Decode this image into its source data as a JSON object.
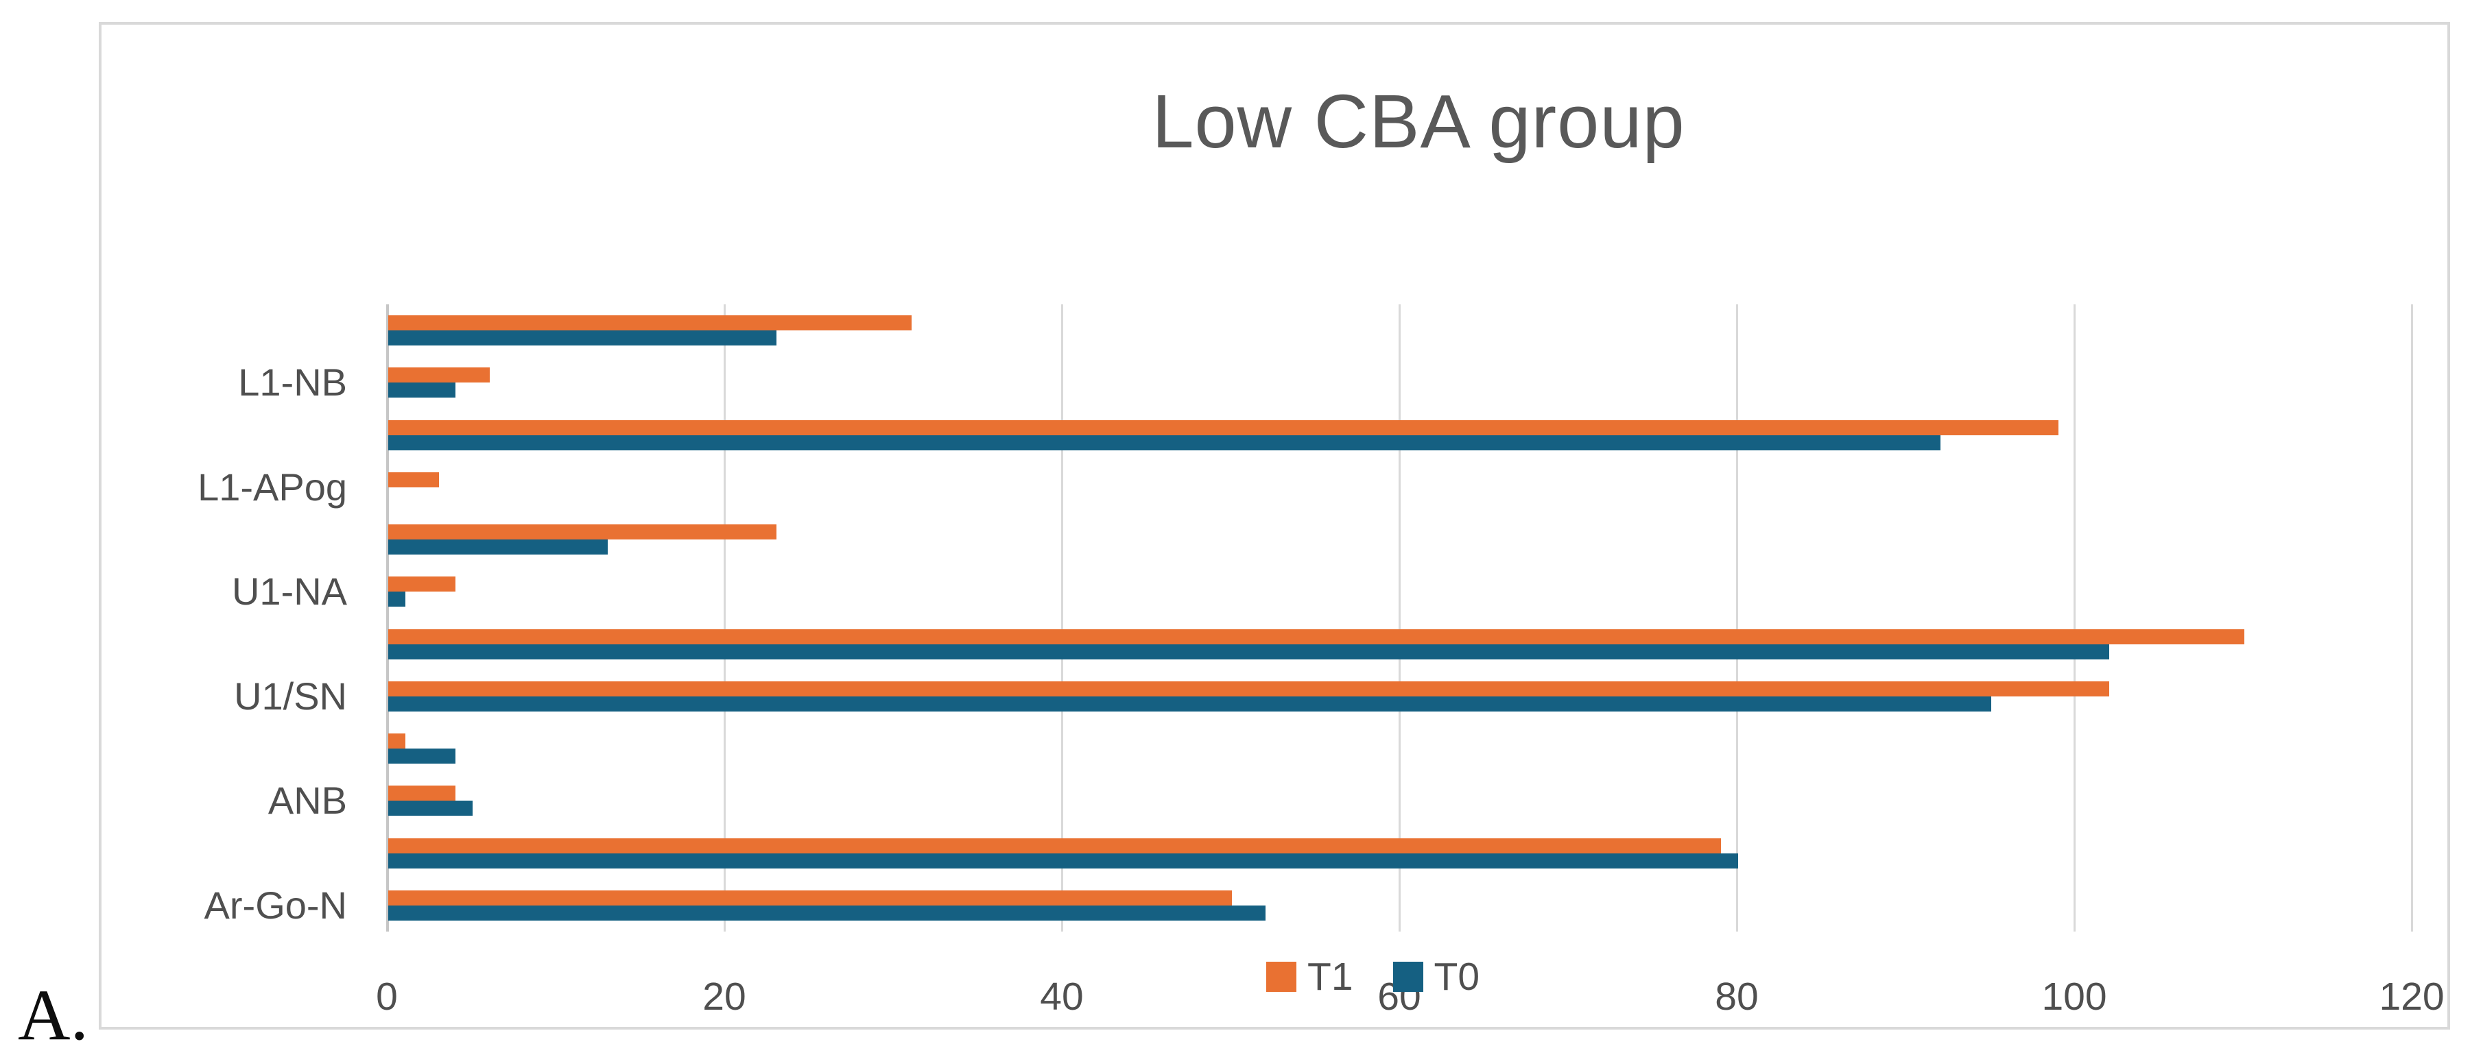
{
  "figure_label": "A.",
  "chart_data": {
    "type": "bar",
    "orientation": "horizontal",
    "title": "Low CBA group",
    "categories_top_to_bottom": [
      "",
      "L1-NB",
      "",
      "L1-APog",
      "",
      "U1-NA",
      "",
      "U1/SN",
      "",
      "ANB",
      "",
      "Ar-Go-N"
    ],
    "series": [
      {
        "name": "T1",
        "color": "#E97132",
        "values_top_to_bottom": [
          31,
          6,
          99,
          3,
          23,
          4,
          110,
          102,
          1,
          4,
          79,
          50
        ]
      },
      {
        "name": "T0",
        "color": "#156082",
        "values_top_to_bottom": [
          23,
          4,
          92,
          0,
          13,
          1,
          102,
          95,
          4,
          5,
          80,
          52
        ]
      }
    ],
    "xlim": [
      0,
      120
    ],
    "xticks": [
      0,
      20,
      40,
      60,
      80,
      100,
      120
    ],
    "xtick_labels": [
      "0",
      "20",
      "40",
      "60",
      "80",
      "100",
      "120"
    ],
    "grid": true,
    "legend_position": "bottom",
    "legend_entries": [
      "T1",
      "T0"
    ],
    "style_colors": {
      "grid_color": "#D9D9D9",
      "axis_line_color": "#C6C6C6",
      "title_color": "#595959",
      "axis_text_color": "#4F4F4F",
      "chart_border_color": "#D9D9D9",
      "background": "#FFFFFF"
    }
  }
}
